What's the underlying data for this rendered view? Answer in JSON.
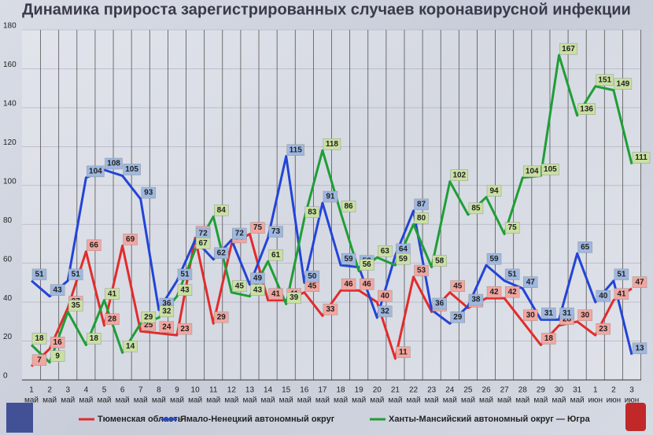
{
  "chart_data": {
    "type": "line",
    "title": "Динамика прироста зарегистрированных случаев коронавирусной инфекции",
    "categories": [
      [
        "1",
        "май"
      ],
      [
        "2",
        "май"
      ],
      [
        "3",
        "май"
      ],
      [
        "4",
        "май"
      ],
      [
        "5",
        "май"
      ],
      [
        "6",
        "май"
      ],
      [
        "7",
        "май"
      ],
      [
        "8",
        "май"
      ],
      [
        "9",
        "май"
      ],
      [
        "10",
        "май"
      ],
      [
        "11",
        "май"
      ],
      [
        "12",
        "май"
      ],
      [
        "13",
        "май"
      ],
      [
        "14",
        "май"
      ],
      [
        "15",
        "май"
      ],
      [
        "16",
        "май"
      ],
      [
        "17",
        "май"
      ],
      [
        "18",
        "май"
      ],
      [
        "19",
        "май"
      ],
      [
        "20",
        "май"
      ],
      [
        "21",
        "май"
      ],
      [
        "22",
        "май"
      ],
      [
        "23",
        "май"
      ],
      [
        "24",
        "май"
      ],
      [
        "25",
        "май"
      ],
      [
        "26",
        "май"
      ],
      [
        "27",
        "май"
      ],
      [
        "28",
        "май"
      ],
      [
        "29",
        "май"
      ],
      [
        "30",
        "май"
      ],
      [
        "31",
        "май"
      ],
      [
        "1",
        "июн"
      ],
      [
        "2",
        "июн"
      ],
      [
        "3",
        "июн"
      ]
    ],
    "series": [
      {
        "name": "Тюменская область",
        "color": "#e32b2b",
        "label_fill": "#f2a6a0",
        "values": [
          7,
          16,
          37,
          66,
          28,
          69,
          25,
          24,
          23,
          73,
          29,
          70,
          75,
          41,
          41,
          45,
          33,
          46,
          46,
          40,
          11,
          53,
          35,
          45,
          37,
          42,
          42,
          30,
          18,
          28,
          30,
          23,
          41,
          47
        ]
      },
      {
        "name": "Ямало-Ненецкий автономный округ",
        "color": "#2244d8",
        "label_fill": "#9fb8e0",
        "values": [
          51,
          43,
          51,
          104,
          108,
          105,
          93,
          36,
          51,
          72,
          62,
          72,
          49,
          73,
          115,
          50,
          91,
          59,
          58,
          32,
          64,
          87,
          36,
          29,
          38,
          59,
          51,
          47,
          31,
          31,
          65,
          40,
          51,
          13
        ]
      },
      {
        "name": "Ханты-Мансийский автономный округ — Югра",
        "color": "#1e9e36",
        "label_fill": "#c9e0a2",
        "values": [
          18,
          9,
          35,
          18,
          41,
          14,
          29,
          32,
          43,
          67,
          84,
          45,
          43,
          61,
          39,
          83,
          118,
          86,
          56,
          63,
          59,
          80,
          58,
          102,
          85,
          94,
          75,
          104,
          105,
          167,
          136,
          151,
          149,
          111
        ]
      }
    ],
    "ylim": [
      0,
      180
    ],
    "yticks": [
      0,
      20,
      40,
      60,
      80,
      100,
      120,
      140,
      160,
      180
    ],
    "grid": true
  }
}
